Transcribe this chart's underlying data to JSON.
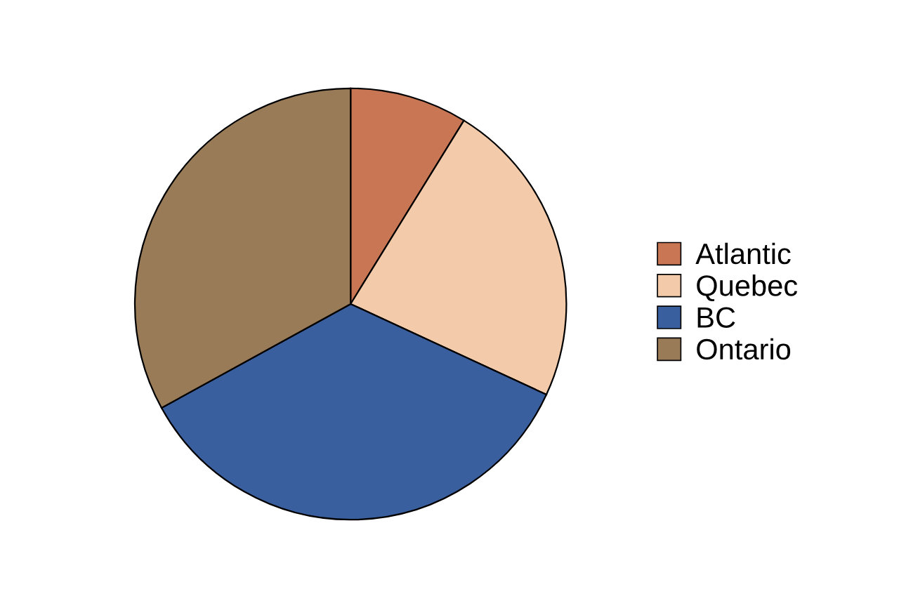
{
  "chart_data": {
    "type": "pie",
    "categories": [
      "Atlantic",
      "Quebec",
      "BC",
      "Ontario"
    ],
    "values": [
      8.8,
      23.1,
      35.1,
      33.0
    ],
    "colors": [
      "#c87653",
      "#f3cbaa",
      "#3a5f9e",
      "#9a7b58"
    ],
    "legend": "right"
  }
}
